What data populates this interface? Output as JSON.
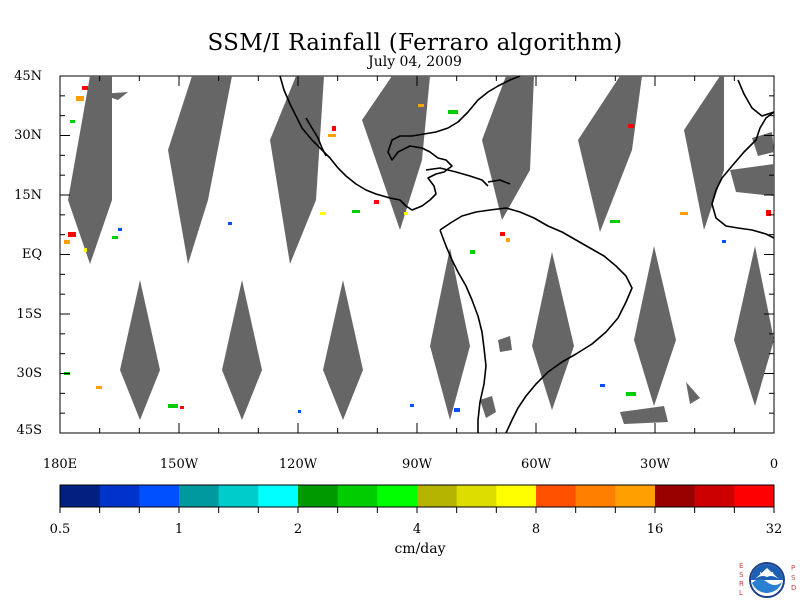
{
  "title": "SSM/I Rainfall (Ferraro algorithm)",
  "subtitle": "July 04, 2009",
  "map": {
    "lat_labels": [
      "45N",
      "30N",
      "15N",
      "EQ",
      "15S",
      "30S",
      "45S"
    ],
    "lon_labels": [
      "180E",
      "150W",
      "120W",
      "90W",
      "60W",
      "30W",
      "0"
    ],
    "no_data_color": "#666666",
    "coast_color": "#000000"
  },
  "colorbar": {
    "units": "cm/day",
    "tick_labels": [
      "0.5",
      "1",
      "2",
      "4",
      "8",
      "16",
      "32"
    ],
    "colors": [
      "#001f7f",
      "#0033cc",
      "#0050ff",
      "#00999f",
      "#00cccc",
      "#00ffff",
      "#009900",
      "#00cc00",
      "#00ff00",
      "#b3b300",
      "#dddd00",
      "#ffff00",
      "#ff5000",
      "#ff8000",
      "#ffa000",
      "#990000",
      "#cc0000",
      "#ff0000"
    ]
  },
  "logo": {
    "left_letters": [
      "E",
      "S",
      "R",
      "L"
    ],
    "right_letters": [
      "P",
      "S",
      "D"
    ],
    "center_text": "NOAA"
  }
}
